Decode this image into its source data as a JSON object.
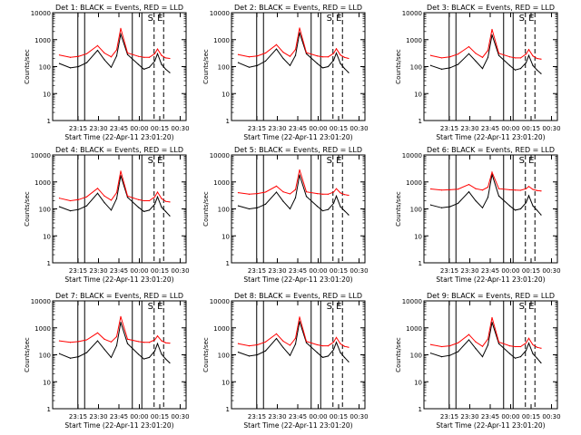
{
  "figure": {
    "ylabel": "Counts/sec",
    "xlabel": "Start Time (22-Apr-11 23:01:20)",
    "x_tick_labels": [
      "23:15",
      "23:30",
      "23:45",
      "00:00",
      "00:15",
      "00:30"
    ],
    "y_tick_labels": [
      "1",
      "10",
      "100",
      "1000",
      "10000"
    ],
    "colors": {
      "events": "#000000",
      "lld": "#ff0000",
      "background": "#ffffff"
    }
  },
  "chart_data": [
    {
      "type": "line",
      "title": "Det 1: BLACK = Events, RED = LLD",
      "marker_labels": [
        "S",
        "E"
      ],
      "grid": false,
      "xlabel": "Start Time (22-Apr-11 23:01:20)",
      "ylabel": "Counts/sec",
      "ylim": [
        1,
        10000
      ],
      "yscale": "log",
      "x_ticks": [
        "23:15",
        "23:30",
        "23:45",
        "00:00",
        "00:15",
        "00:30"
      ],
      "series": [
        {
          "name": "Events",
          "color": "#000000",
          "x": [
            0,
            8,
            14,
            20,
            28,
            33,
            38,
            42,
            45,
            50,
            58,
            62,
            66,
            70,
            72,
            75,
            78,
            81
          ],
          "y": [
            130,
            90,
            100,
            140,
            400,
            180,
            95,
            250,
            1600,
            280,
            120,
            80,
            95,
            160,
            300,
            120,
            80,
            60
          ]
        },
        {
          "name": "LLD",
          "color": "#ff0000",
          "x": [
            0,
            8,
            14,
            20,
            28,
            33,
            38,
            42,
            45,
            50,
            58,
            62,
            66,
            70,
            72,
            75,
            78,
            81
          ],
          "y": [
            270,
            220,
            240,
            300,
            600,
            320,
            230,
            420,
            2600,
            320,
            240,
            220,
            220,
            300,
            450,
            260,
            210,
            200
          ]
        }
      ]
    },
    {
      "type": "line",
      "title": "Det 2: BLACK = Events, RED = LLD",
      "marker_labels": [
        "S",
        "E"
      ],
      "grid": false,
      "xlabel": "Start Time (22-Apr-11 23:01:20)",
      "ylabel": "Counts/sec",
      "ylim": [
        1,
        10000
      ],
      "yscale": "log",
      "x_ticks": [
        "23:15",
        "23:30",
        "23:45",
        "00:00",
        "00:15",
        "00:30"
      ],
      "series": [
        {
          "name": "Events",
          "color": "#000000",
          "x": [
            0,
            8,
            14,
            20,
            28,
            33,
            38,
            42,
            45,
            50,
            58,
            62,
            66,
            70,
            72,
            75,
            78,
            81
          ],
          "y": [
            140,
            95,
            110,
            160,
            450,
            200,
            110,
            260,
            1800,
            300,
            130,
            90,
            100,
            170,
            320,
            130,
            85,
            60
          ]
        },
        {
          "name": "LLD",
          "color": "#ff0000",
          "x": [
            0,
            8,
            14,
            20,
            28,
            33,
            38,
            42,
            45,
            50,
            58,
            62,
            66,
            70,
            72,
            75,
            78,
            81
          ],
          "y": [
            280,
            230,
            250,
            320,
            650,
            340,
            240,
            430,
            2700,
            330,
            250,
            230,
            230,
            310,
            460,
            270,
            220,
            200
          ]
        }
      ]
    },
    {
      "type": "line",
      "title": "Det 3: BLACK = Events, RED = LLD",
      "marker_labels": [
        "S",
        "E"
      ],
      "grid": false,
      "xlabel": "Start Time (22-Apr-11 23:01:20)",
      "ylabel": "Counts/sec",
      "ylim": [
        1,
        10000
      ],
      "yscale": "log",
      "x_ticks": [
        "23:15",
        "23:30",
        "23:45",
        "00:00",
        "00:15",
        "00:30"
      ],
      "series": [
        {
          "name": "Events",
          "color": "#000000",
          "x": [
            0,
            8,
            14,
            20,
            28,
            33,
            38,
            42,
            45,
            50,
            58,
            62,
            66,
            70,
            72,
            75,
            78,
            81
          ],
          "y": [
            110,
            80,
            90,
            120,
            300,
            160,
            85,
            220,
            1500,
            260,
            110,
            75,
            85,
            140,
            260,
            110,
            75,
            55
          ]
        },
        {
          "name": "LLD",
          "color": "#ff0000",
          "x": [
            0,
            8,
            14,
            20,
            28,
            33,
            38,
            42,
            45,
            50,
            58,
            62,
            66,
            70,
            72,
            75,
            78,
            81
          ],
          "y": [
            260,
            210,
            230,
            290,
            550,
            310,
            220,
            400,
            2400,
            310,
            230,
            210,
            210,
            290,
            430,
            250,
            200,
            190
          ]
        }
      ]
    },
    {
      "type": "line",
      "title": "Det 4: BLACK = Events, RED = LLD",
      "marker_labels": [
        "S",
        "E"
      ],
      "grid": false,
      "xlabel": "Start Time (22-Apr-11 23:01:20)",
      "ylabel": "Counts/sec",
      "ylim": [
        1,
        10000
      ],
      "yscale": "log",
      "x_ticks": [
        "23:15",
        "23:30",
        "23:45",
        "00:00",
        "00:15",
        "00:30"
      ],
      "series": [
        {
          "name": "Events",
          "color": "#000000",
          "x": [
            0,
            8,
            14,
            20,
            28,
            33,
            38,
            42,
            45,
            50,
            58,
            62,
            66,
            70,
            72,
            75,
            78,
            81
          ],
          "y": [
            120,
            85,
            95,
            130,
            380,
            170,
            90,
            240,
            1700,
            270,
            115,
            80,
            90,
            150,
            280,
            115,
            80,
            55
          ]
        },
        {
          "name": "LLD",
          "color": "#ff0000",
          "x": [
            0,
            8,
            14,
            20,
            28,
            33,
            38,
            42,
            45,
            50,
            58,
            62,
            66,
            70,
            72,
            75,
            78,
            81
          ],
          "y": [
            250,
            200,
            220,
            280,
            580,
            300,
            210,
            400,
            2500,
            300,
            220,
            200,
            200,
            280,
            420,
            240,
            190,
            180
          ]
        }
      ]
    },
    {
      "type": "line",
      "title": "Det 5: BLACK = Events, RED = LLD",
      "marker_labels": [
        "S",
        "E"
      ],
      "grid": false,
      "xlabel": "Start Time (22-Apr-11 23:01:20)",
      "ylabel": "Counts/sec",
      "ylim": [
        1,
        10000
      ],
      "yscale": "log",
      "x_ticks": [
        "23:15",
        "23:30",
        "23:45",
        "00:00",
        "00:15",
        "00:30"
      ],
      "series": [
        {
          "name": "Events",
          "color": "#000000",
          "x": [
            0,
            8,
            14,
            20,
            28,
            33,
            38,
            42,
            45,
            50,
            58,
            62,
            66,
            70,
            72,
            75,
            78,
            81
          ],
          "y": [
            130,
            100,
            110,
            150,
            420,
            190,
            100,
            260,
            1800,
            290,
            125,
            85,
            95,
            160,
            300,
            120,
            85,
            60
          ]
        },
        {
          "name": "LLD",
          "color": "#ff0000",
          "x": [
            0,
            8,
            14,
            20,
            28,
            33,
            38,
            42,
            45,
            50,
            58,
            62,
            66,
            70,
            72,
            75,
            78,
            81
          ],
          "y": [
            400,
            350,
            370,
            420,
            700,
            430,
            360,
            520,
            2800,
            430,
            370,
            350,
            350,
            420,
            560,
            390,
            340,
            320
          ]
        }
      ]
    },
    {
      "type": "line",
      "title": "Det 6: BLACK = Events, RED = LLD",
      "marker_labels": [
        "S",
        "E"
      ],
      "grid": false,
      "xlabel": "Start Time (22-Apr-11 23:01:20)",
      "ylabel": "Counts/sec",
      "ylim": [
        1,
        10000
      ],
      "yscale": "log",
      "x_ticks": [
        "23:15",
        "23:30",
        "23:45",
        "00:00",
        "00:15",
        "00:30"
      ],
      "series": [
        {
          "name": "Events",
          "color": "#000000",
          "x": [
            0,
            8,
            14,
            20,
            28,
            33,
            38,
            42,
            45,
            50,
            58,
            62,
            66,
            70,
            72,
            75,
            78,
            81
          ],
          "y": [
            140,
            110,
            120,
            160,
            430,
            200,
            110,
            270,
            1900,
            300,
            130,
            90,
            100,
            170,
            310,
            130,
            90,
            60
          ]
        },
        {
          "name": "LLD",
          "color": "#ff0000",
          "x": [
            0,
            8,
            14,
            20,
            28,
            33,
            38,
            42,
            45,
            50,
            58,
            62,
            66,
            70,
            72,
            75,
            78,
            81
          ],
          "y": [
            550,
            500,
            510,
            540,
            800,
            560,
            500,
            640,
            2300,
            560,
            510,
            500,
            490,
            560,
            680,
            530,
            480,
            460
          ]
        }
      ]
    },
    {
      "type": "line",
      "title": "Det 7: BLACK = Events, RED = LLD",
      "marker_labels": [
        "S",
        "E"
      ],
      "grid": false,
      "xlabel": "Start Time (22-Apr-11 23:01:20)",
      "ylabel": "Counts/sec",
      "ylim": [
        1,
        10000
      ],
      "yscale": "log",
      "x_ticks": [
        "23:15",
        "23:30",
        "23:45",
        "00:00",
        "00:15",
        "00:30"
      ],
      "series": [
        {
          "name": "Events",
          "color": "#000000",
          "x": [
            0,
            8,
            14,
            20,
            28,
            33,
            38,
            42,
            45,
            50,
            58,
            62,
            66,
            70,
            72,
            75,
            78,
            81
          ],
          "y": [
            110,
            75,
            85,
            120,
            330,
            160,
            80,
            220,
            1600,
            260,
            105,
            70,
            80,
            140,
            260,
            105,
            70,
            50
          ]
        },
        {
          "name": "LLD",
          "color": "#ff0000",
          "x": [
            0,
            8,
            14,
            20,
            28,
            33,
            38,
            42,
            45,
            50,
            58,
            62,
            66,
            70,
            72,
            75,
            78,
            81
          ],
          "y": [
            330,
            290,
            310,
            360,
            650,
            380,
            300,
            470,
            2600,
            380,
            310,
            290,
            290,
            360,
            500,
            330,
            280,
            270
          ]
        }
      ]
    },
    {
      "type": "line",
      "title": "Det 8: BLACK = Events, RED = LLD",
      "marker_labels": [
        "S",
        "E"
      ],
      "grid": false,
      "xlabel": "Start Time (22-Apr-11 23:01:20)",
      "ylabel": "Counts/sec",
      "ylim": [
        1,
        10000
      ],
      "yscale": "log",
      "x_ticks": [
        "23:15",
        "23:30",
        "23:45",
        "00:00",
        "00:15",
        "00:30"
      ],
      "series": [
        {
          "name": "Events",
          "color": "#000000",
          "x": [
            0,
            8,
            14,
            20,
            28,
            33,
            38,
            42,
            45,
            50,
            58,
            62,
            66,
            70,
            72,
            75,
            78,
            81
          ],
          "y": [
            125,
            90,
            100,
            140,
            400,
            185,
            95,
            250,
            1700,
            280,
            120,
            80,
            90,
            155,
            290,
            120,
            80,
            55
          ]
        },
        {
          "name": "LLD",
          "color": "#ff0000",
          "x": [
            0,
            8,
            14,
            20,
            28,
            33,
            38,
            42,
            45,
            50,
            58,
            62,
            66,
            70,
            72,
            75,
            78,
            81
          ],
          "y": [
            260,
            215,
            235,
            300,
            600,
            320,
            225,
            410,
            2500,
            315,
            235,
            215,
            215,
            295,
            440,
            255,
            205,
            190
          ]
        }
      ]
    },
    {
      "type": "line",
      "title": "Det 9: BLACK = Events, RED = LLD",
      "marker_labels": [
        "S",
        "E"
      ],
      "grid": false,
      "xlabel": "Start Time (22-Apr-11 23:01:20)",
      "ylabel": "Counts/sec",
      "ylim": [
        1,
        10000
      ],
      "yscale": "log",
      "x_ticks": [
        "23:15",
        "23:30",
        "23:45",
        "00:00",
        "00:15",
        "00:30"
      ],
      "series": [
        {
          "name": "Events",
          "color": "#000000",
          "x": [
            0,
            8,
            14,
            20,
            28,
            33,
            38,
            42,
            45,
            50,
            58,
            62,
            66,
            70,
            72,
            75,
            78,
            81
          ],
          "y": [
            115,
            85,
            95,
            130,
            360,
            170,
            85,
            230,
            1600,
            260,
            110,
            75,
            85,
            145,
            270,
            110,
            75,
            50
          ]
        },
        {
          "name": "LLD",
          "color": "#ff0000",
          "x": [
            0,
            8,
            14,
            20,
            28,
            33,
            38,
            42,
            45,
            50,
            58,
            62,
            66,
            70,
            72,
            75,
            78,
            81
          ],
          "y": [
            240,
            200,
            215,
            275,
            560,
            300,
            205,
            385,
            2400,
            295,
            215,
            200,
            200,
            275,
            410,
            235,
            190,
            175
          ]
        }
      ]
    }
  ]
}
